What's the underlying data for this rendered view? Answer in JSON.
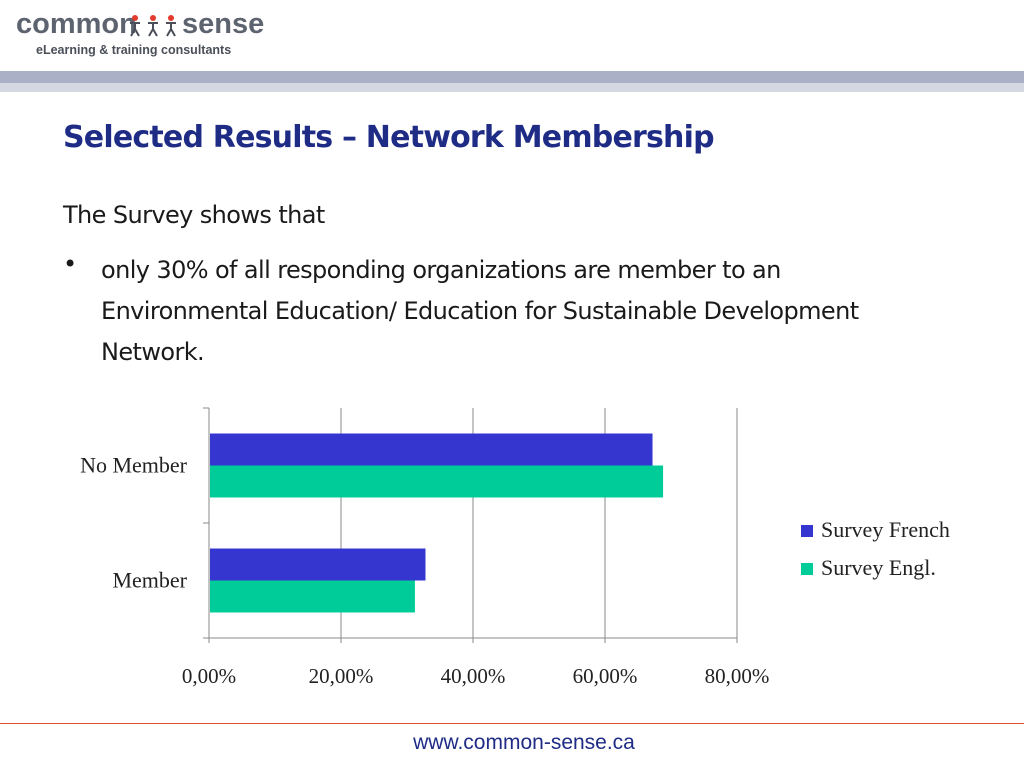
{
  "header": {
    "logo_word_left": "common",
    "logo_word_right": "sense",
    "logo_tagline": "eLearning & training consultants"
  },
  "slide": {
    "title": "Selected Results – Network Membership",
    "intro": "The Survey shows that",
    "bullet": "only 30% of all responding organizations are member to an Environmental Education/ Education for Sustainable Development Network."
  },
  "chart_data": {
    "type": "bar",
    "orientation": "horizontal",
    "categories": [
      "No Member",
      "Member"
    ],
    "series": [
      {
        "name": "Survey French",
        "values": [
          67.2,
          32.8
        ],
        "color": "#3535d0"
      },
      {
        "name": "Survey Engl.",
        "values": [
          68.8,
          31.2
        ],
        "color": "#00cc99"
      }
    ],
    "xlim": [
      0,
      80
    ],
    "tick_labels": [
      "0,00%",
      "20,00%",
      "40,00%",
      "60,00%",
      "80,00%"
    ],
    "grid": true,
    "legend": "right"
  },
  "footer": {
    "url": "www.common-sense.ca"
  },
  "colors": {
    "title": "#1f2c86",
    "header_rule": "#aab1c6",
    "footer_rule": "#e44d2e"
  }
}
